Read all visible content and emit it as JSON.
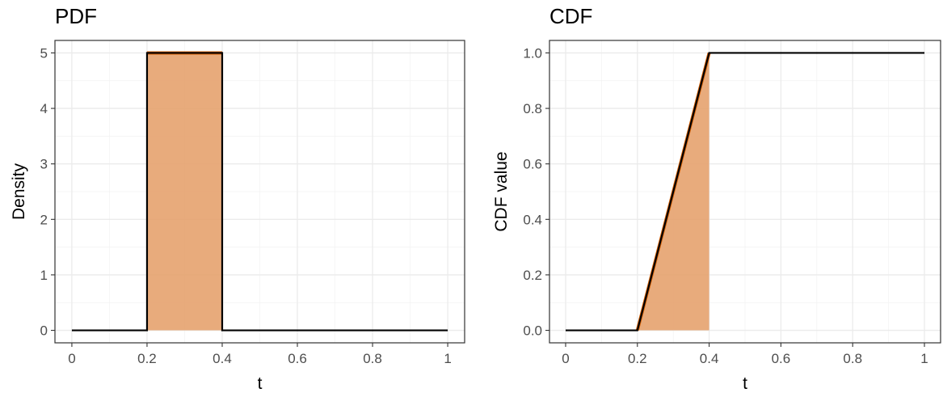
{
  "chart_data": [
    {
      "type": "line",
      "title": "PDF",
      "xlabel": "t",
      "ylabel": "Density",
      "xlim": [
        0,
        1
      ],
      "ylim": [
        0,
        5
      ],
      "x_ticks": [
        0,
        0.2,
        0.4,
        0.6,
        0.8,
        1
      ],
      "x_tick_labels": [
        "0",
        "0.2",
        "0.4",
        "0.6",
        "0.8",
        "1"
      ],
      "y_ticks": [
        0,
        1,
        2,
        3,
        4,
        5
      ],
      "y_tick_labels": [
        "0",
        "1",
        "2",
        "3",
        "4",
        "5"
      ],
      "grid": true,
      "series": [
        {
          "x": [
            0,
            0.2,
            0.2,
            0.4,
            0.4,
            1
          ],
          "y": [
            0,
            0,
            5,
            5,
            0,
            0
          ],
          "color": "#000000"
        }
      ],
      "shaded_region": {
        "x": [
          0.2,
          0.4
        ],
        "y": [
          5,
          5
        ],
        "color": "#E6A26E",
        "edge_color": "#D55E00"
      }
    },
    {
      "type": "line",
      "title": "CDF",
      "xlabel": "t",
      "ylabel": "CDF value",
      "xlim": [
        0,
        1
      ],
      "ylim": [
        0,
        1
      ],
      "x_ticks": [
        0,
        0.2,
        0.4,
        0.6,
        0.8,
        1
      ],
      "x_tick_labels": [
        "0",
        "0.2",
        "0.4",
        "0.6",
        "0.8",
        "1"
      ],
      "y_ticks": [
        0,
        0.2,
        0.4,
        0.6,
        0.8,
        1
      ],
      "y_tick_labels": [
        "0.0",
        "0.2",
        "0.4",
        "0.6",
        "0.8",
        "1.0"
      ],
      "grid": true,
      "series": [
        {
          "x": [
            0,
            0.2,
            0.4,
            1
          ],
          "y": [
            0,
            0,
            1,
            1
          ],
          "color": "#000000"
        }
      ],
      "shaded_region": {
        "x": [
          0.2,
          0.4
        ],
        "y": [
          0,
          1
        ],
        "color": "#E6A26E",
        "edge_color": "#D55E00"
      }
    }
  ]
}
